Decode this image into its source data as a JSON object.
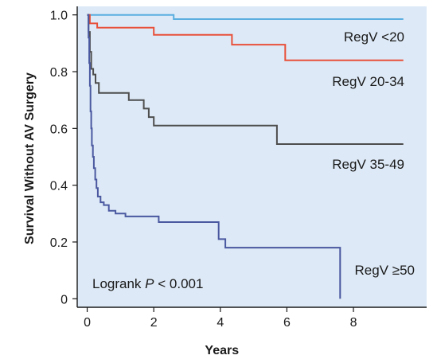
{
  "chart_data": {
    "type": "line",
    "step": true,
    "title": "",
    "xlabel": "Years",
    "ylabel": "Survival Without AV Surgery",
    "xlim": [
      -0.3,
      10.2
    ],
    "ylim": [
      -0.03,
      1.03
    ],
    "x_ticks": [
      0,
      2,
      4,
      6,
      8
    ],
    "y_ticks": [
      0,
      0.2,
      0.4,
      0.6,
      0.8,
      1.0
    ],
    "y_tick_labels": [
      "0",
      "0.2",
      "0.4",
      "0.6",
      "0.8",
      "1.0"
    ],
    "grid": false,
    "background": "#dde9f6",
    "annotation": {
      "prefix": "Logrank ",
      "p": "P",
      "suffix": " < 0.001"
    },
    "series": [
      {
        "name": "RegV <20",
        "color": "#5aaee0",
        "x": [
          0,
          2.6,
          9.5
        ],
        "y": [
          1.0,
          0.985,
          0.985
        ]
      },
      {
        "name": "RegV 20-34",
        "color": "#e8503a",
        "x": [
          0,
          0.08,
          0.3,
          2.0,
          4.35,
          5.95,
          9.5
        ],
        "y": [
          1.0,
          0.97,
          0.955,
          0.93,
          0.895,
          0.84,
          0.84
        ]
      },
      {
        "name": "RegV 35-49",
        "color": "#4d4d4d",
        "x": [
          0,
          0.04,
          0.08,
          0.12,
          0.18,
          0.25,
          0.35,
          1.25,
          1.7,
          1.85,
          2.0,
          5.7,
          9.5
        ],
        "y": [
          1.0,
          0.94,
          0.87,
          0.81,
          0.79,
          0.76,
          0.725,
          0.7,
          0.67,
          0.64,
          0.61,
          0.545,
          0.545
        ]
      },
      {
        "name": "RegV ≥50",
        "color": "#4a58a0",
        "x": [
          0,
          0.04,
          0.06,
          0.08,
          0.1,
          0.12,
          0.14,
          0.17,
          0.2,
          0.24,
          0.28,
          0.32,
          0.4,
          0.5,
          0.65,
          0.85,
          1.15,
          2.15,
          3.95,
          4.15,
          7.55,
          7.6
        ],
        "y": [
          1.0,
          0.92,
          0.83,
          0.75,
          0.66,
          0.6,
          0.54,
          0.5,
          0.46,
          0.42,
          0.39,
          0.36,
          0.34,
          0.33,
          0.31,
          0.3,
          0.29,
          0.27,
          0.21,
          0.18,
          0.18,
          0.0
        ]
      }
    ]
  }
}
